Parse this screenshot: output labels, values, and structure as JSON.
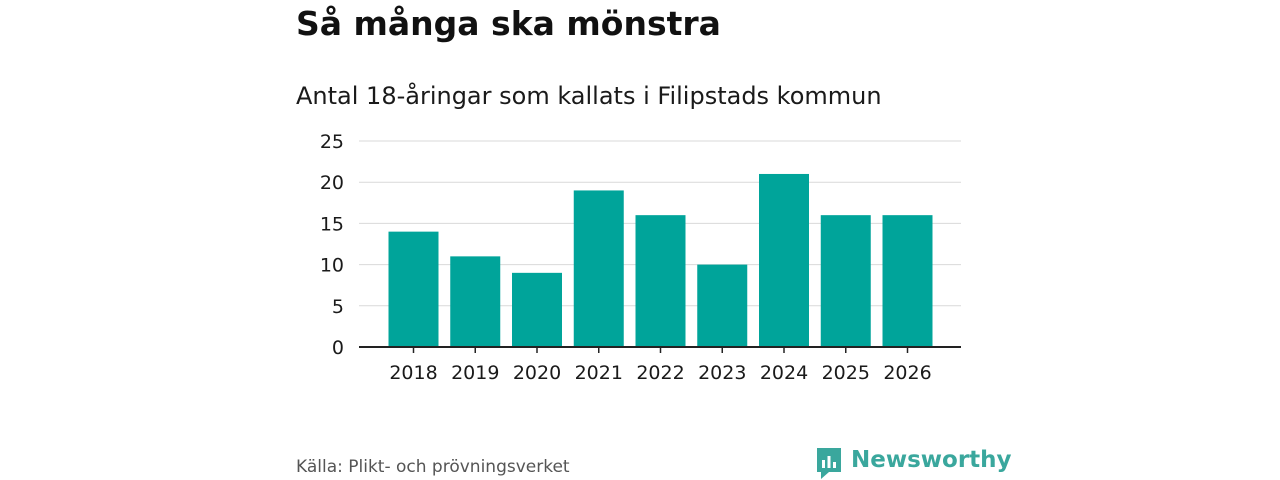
{
  "header": {
    "title": "Så många ska mönstra",
    "subtitle": "Antal 18-åringar som kallats i Filipstads kommun"
  },
  "footer": {
    "source": "Källa: Plikt- och prövningsverket",
    "brand": "Newsworthy",
    "brand_icon": "bar-chart-logo-icon"
  },
  "colors": {
    "bar": "#00a49a",
    "grid": "#d9d9d9",
    "axis": "#222222",
    "brand": "#3aa79d"
  },
  "chart_data": {
    "type": "bar",
    "title": "Antal 18-åringar som kallats i Filipstads kommun",
    "xlabel": "",
    "ylabel": "",
    "categories": [
      "2018",
      "2019",
      "2020",
      "2021",
      "2022",
      "2023",
      "2024",
      "2025",
      "2026"
    ],
    "values": [
      14,
      11,
      9,
      19,
      16,
      10,
      21,
      16,
      16
    ],
    "ylim": [
      0,
      25
    ],
    "yticks": [
      0,
      5,
      10,
      15,
      20,
      25
    ],
    "grid": true,
    "legend": "none"
  }
}
